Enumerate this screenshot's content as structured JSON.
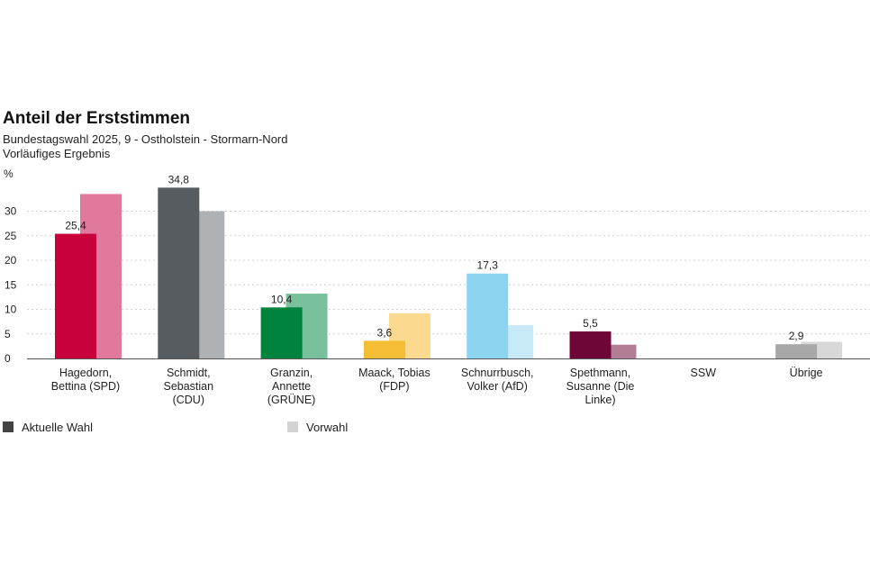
{
  "chart_data": {
    "type": "bar",
    "title": "Anteil der Erststimmen",
    "subtitle": "Bundestagswahl 2025, 9 - Ostholstein - Stormarn-Nord",
    "subtitle2": "Vorläufiges Ergebnis",
    "ylabel": "%",
    "ylim": [
      0,
      35
    ],
    "yticks": [
      "0",
      "5",
      "10",
      "15",
      "20",
      "25",
      "30"
    ],
    "grid": true,
    "legend_position": "bottom",
    "categories": [
      [
        "Hagedorn,",
        "Bettina (SPD)"
      ],
      [
        "Schmidt,",
        "Sebastian",
        "(CDU)"
      ],
      [
        "Granzin,",
        "Annette",
        "(GRÜNE)"
      ],
      [
        "Maack, Tobias",
        "(FDP)"
      ],
      [
        "Schnurrbusch,",
        "Volker (AfD)"
      ],
      [
        "Spethmann,",
        "Susanne (Die",
        "Linke)"
      ],
      [
        "SSW"
      ],
      [
        "Übrige"
      ]
    ],
    "series": [
      {
        "name": "Aktuelle Wahl",
        "values": [
          25.4,
          34.8,
          10.4,
          3.6,
          17.3,
          5.5,
          null,
          2.9
        ],
        "labels": [
          "25,4",
          "34,8",
          "10,4",
          "3,6",
          "17,3",
          "5,5",
          "",
          "2,9"
        ],
        "colors": [
          "#c8003c",
          "#565c60",
          "#00843d",
          "#f5bd35",
          "#8dd4f0",
          "#6e0737",
          "#999999",
          "#a8a8a8"
        ]
      },
      {
        "name": "Vorwahl",
        "values": [
          33.5,
          30.0,
          13.2,
          9.2,
          6.8,
          2.8,
          null,
          3.4
        ],
        "colors": [
          "#e0799c",
          "#aeb2b5",
          "#79c19d",
          "#fbd98f",
          "#c8eaf8",
          "#b27d95",
          "#cccccc",
          "#d8d8d8"
        ]
      }
    ],
    "legend_colors": {
      "current": "#444444",
      "previous": "#d3d3d3"
    }
  }
}
